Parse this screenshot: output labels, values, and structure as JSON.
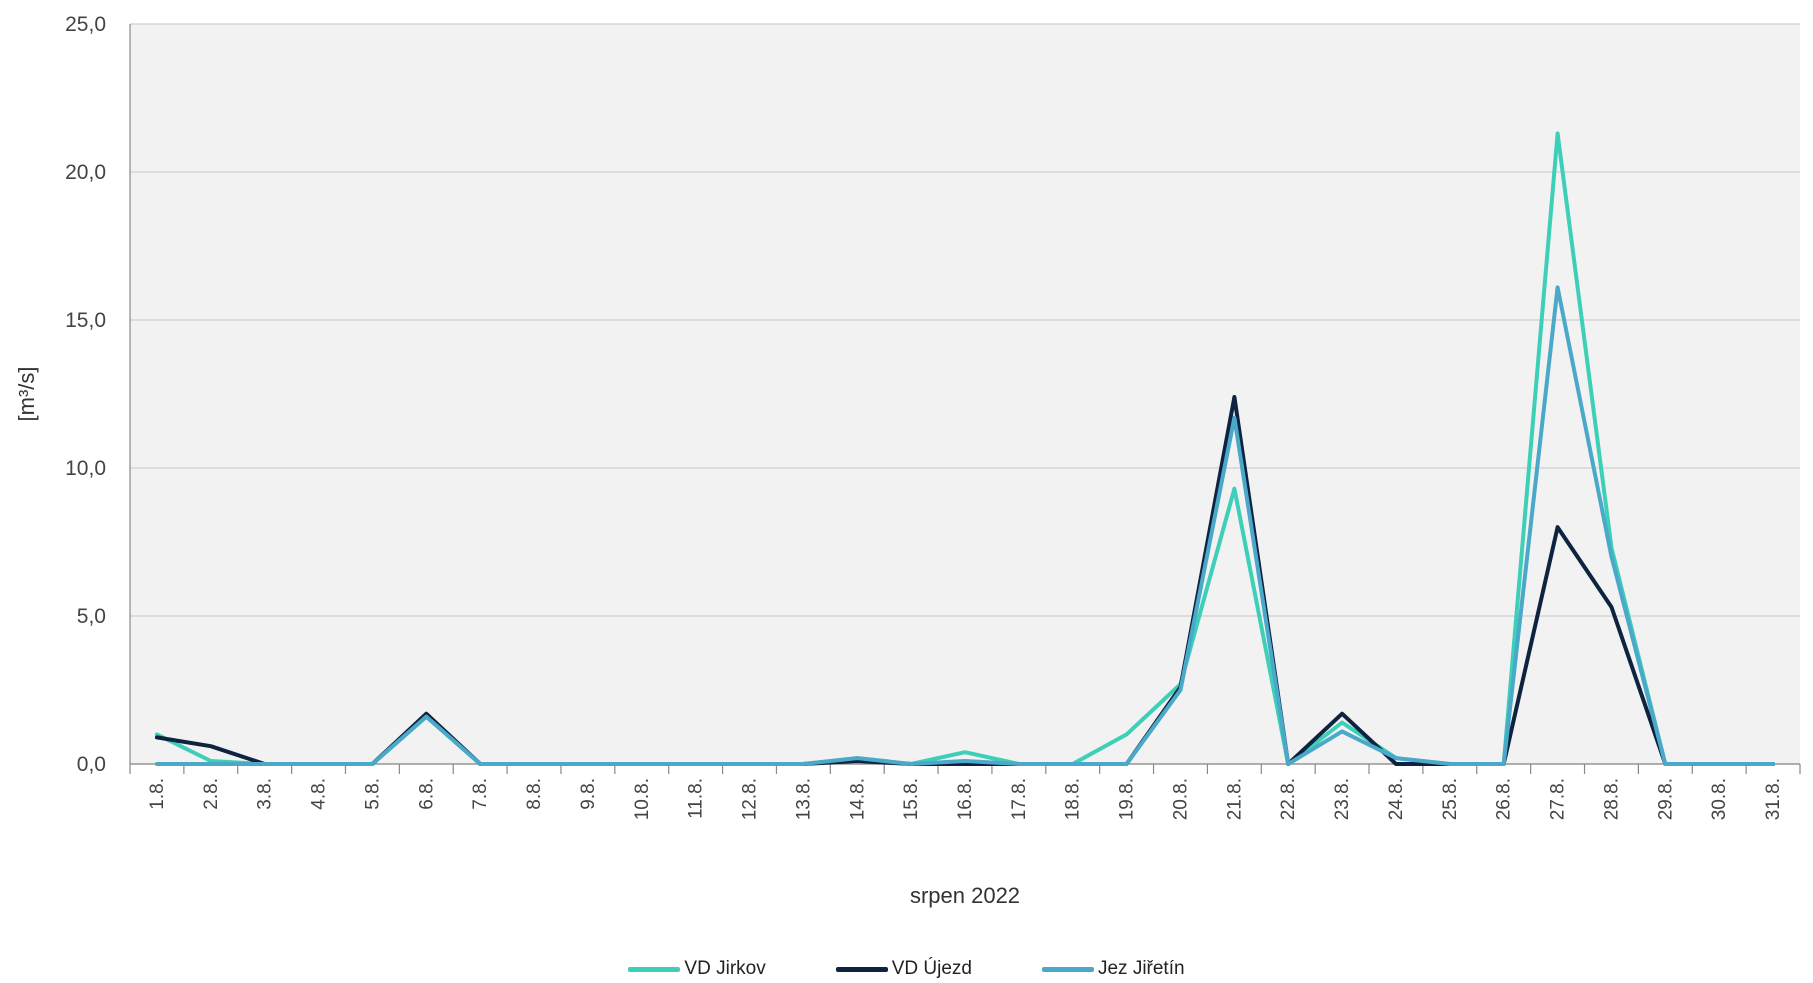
{
  "chart_data": {
    "type": "line",
    "title": "",
    "xlabel": "srpen 2022",
    "ylabel": "[m³/s]",
    "ylim": [
      0,
      25
    ],
    "yticks": [
      "0,0",
      "5,0",
      "10,0",
      "15,0",
      "20,0",
      "25,0"
    ],
    "ytick_values": [
      0,
      5,
      10,
      15,
      20,
      25
    ],
    "categories": [
      "1.8.",
      "2.8.",
      "3.8.",
      "4.8.",
      "5.8.",
      "6.8.",
      "7.8.",
      "8.8.",
      "9.8.",
      "10.8.",
      "11.8.",
      "12.8.",
      "13.8.",
      "14.8.",
      "15.8.",
      "16.8.",
      "17.8.",
      "18.8.",
      "19.8.",
      "20.8.",
      "21.8.",
      "22.8.",
      "23.8.",
      "24.8.",
      "25.8.",
      "26.8.",
      "27.8.",
      "28.8.",
      "29.8.",
      "30.8.",
      "31.8."
    ],
    "grid": true,
    "legend_position": "bottom",
    "series": [
      {
        "name": "VD Jirkov",
        "color": "#3dcfb8",
        "values": [
          1.0,
          0.1,
          0.0,
          0.0,
          0.0,
          1.6,
          0.0,
          0.0,
          0.0,
          0.0,
          0.0,
          0.0,
          0.0,
          0.2,
          0.0,
          0.4,
          0.0,
          0.0,
          1.0,
          2.7,
          9.3,
          0.0,
          1.4,
          0.2,
          0.0,
          0.0,
          21.3,
          7.3,
          0.0,
          0.0,
          0.0
        ]
      },
      {
        "name": "VD Újezd",
        "color": "#0d2340",
        "values": [
          0.9,
          0.6,
          0.0,
          0.0,
          0.0,
          1.7,
          0.0,
          0.0,
          0.0,
          0.0,
          0.0,
          0.0,
          0.0,
          0.1,
          0.0,
          0.0,
          0.0,
          0.0,
          0.0,
          2.6,
          12.4,
          0.0,
          1.7,
          0.0,
          0.0,
          0.0,
          8.0,
          5.3,
          0.0,
          0.0,
          0.0
        ]
      },
      {
        "name": "Jez Jiřetín",
        "color": "#4aa8c8",
        "values": [
          0.0,
          0.0,
          0.0,
          0.0,
          0.0,
          1.6,
          0.0,
          0.0,
          0.0,
          0.0,
          0.0,
          0.0,
          0.0,
          0.2,
          0.0,
          0.1,
          0.0,
          0.0,
          0.0,
          2.5,
          11.7,
          0.0,
          1.1,
          0.2,
          0.0,
          0.0,
          16.1,
          7.0,
          0.0,
          0.0,
          0.0
        ]
      }
    ]
  }
}
